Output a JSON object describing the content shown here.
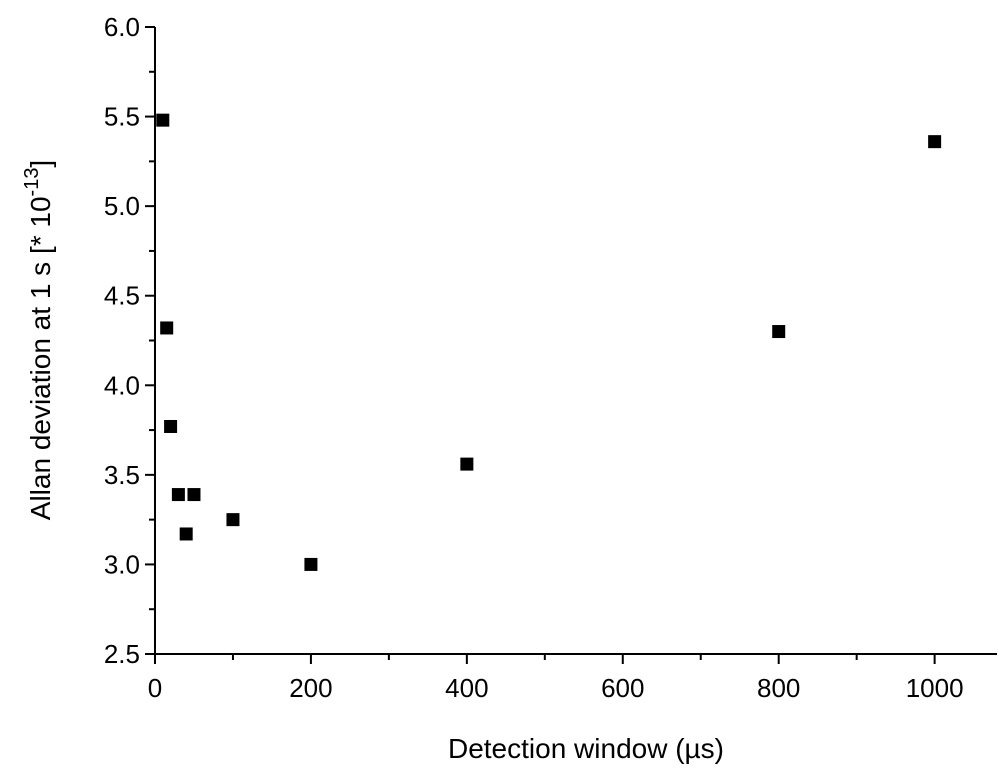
{
  "chart_data": {
    "type": "scatter",
    "xlabel": "Detection window (µs)",
    "ylabel_main": "Allan deviation at 1 s [* 10",
    "ylabel_exp": "-13",
    "ylabel_close": "]",
    "xlim": [
      0,
      1080
    ],
    "ylim": [
      2.5,
      6.0
    ],
    "x_ticks": [
      0,
      200,
      400,
      600,
      800,
      1000
    ],
    "x_tick_labels": [
      "0",
      "200",
      "400",
      "600",
      "800",
      "1000"
    ],
    "x_minor_ticks": [
      100,
      300,
      500,
      700,
      900
    ],
    "y_ticks": [
      2.5,
      3.0,
      3.5,
      4.0,
      4.5,
      5.0,
      5.5,
      6.0
    ],
    "y_tick_labels": [
      "2.5",
      "3.0",
      "3.5",
      "4.0",
      "4.5",
      "5.0",
      "5.5",
      "6.0"
    ],
    "y_minor_ticks": [
      2.75,
      3.25,
      3.75,
      4.25,
      4.75,
      5.25,
      5.75
    ],
    "grid": false,
    "marker": "square",
    "marker_color": "#000000",
    "series": [
      {
        "x": [
          10,
          15,
          20,
          30,
          40,
          50,
          100,
          200,
          400,
          800,
          1000
        ],
        "y": [
          5.48,
          4.32,
          3.77,
          3.39,
          3.17,
          3.39,
          3.25,
          3.0,
          3.56,
          4.3,
          5.36
        ]
      }
    ]
  }
}
